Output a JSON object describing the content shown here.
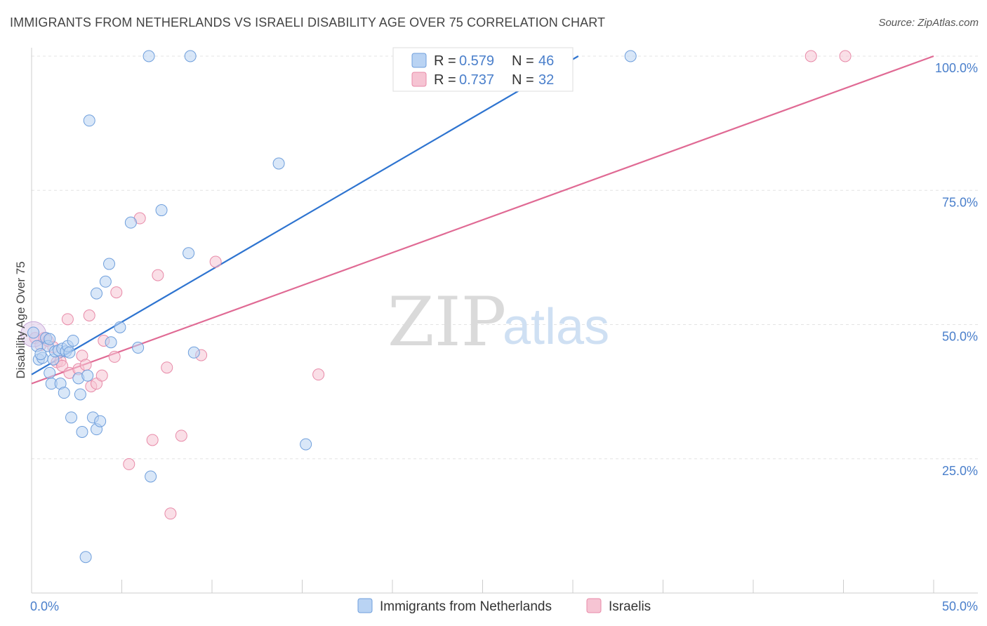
{
  "header": {
    "title": "IMMIGRANTS FROM NETHERLANDS VS ISRAELI DISABILITY AGE OVER 75 CORRELATION CHART",
    "source": "Source: ZipAtlas.com"
  },
  "watermark": {
    "zip": "ZIP",
    "atlas": "atlas"
  },
  "colors": {
    "blue_fill": "#b9d3f3",
    "blue_stroke": "#6f9fdc",
    "blue_line": "#2e74d0",
    "pink_fill": "#f6c4d3",
    "pink_stroke": "#e88aa8",
    "pink_line": "#e06a94",
    "axis_label": "#4a7fcb",
    "grid": "#e4e4e4"
  },
  "legend": {
    "rows": [
      {
        "r_label": "R =",
        "r_value": "0.579",
        "n_label": "N =",
        "n_value": "46",
        "series": "blue"
      },
      {
        "r_label": "R =",
        "r_value": "0.737",
        "n_label": "N =",
        "n_value": "32",
        "series": "pink"
      }
    ]
  },
  "chart_data": {
    "type": "scatter",
    "title": "IMMIGRANTS FROM NETHERLANDS VS ISRAELI DISABILITY AGE OVER 75 CORRELATION CHART",
    "xlabel": "",
    "ylabel": "Disability Age Over 75",
    "xlim": [
      0,
      50
    ],
    "ylim": [
      0,
      100
    ],
    "x_tick_labels": [
      {
        "value": 0,
        "label": "0.0%"
      },
      {
        "value": 50,
        "label": "50.0%"
      }
    ],
    "y_tick_labels": [
      {
        "value": 25,
        "label": "25.0%"
      },
      {
        "value": 50,
        "label": "50.0%"
      },
      {
        "value": 75,
        "label": "75.0%"
      },
      {
        "value": 100,
        "label": "100.0%"
      }
    ],
    "series": [
      {
        "name": "Immigrants from Netherlands",
        "color": "blue",
        "r": 0.579,
        "n": 46,
        "trend": {
          "x": [
            0,
            30.3
          ],
          "y": [
            40.7,
            100
          ]
        },
        "points": [
          [
            0.1,
            48.5
          ],
          [
            0.3,
            46.0
          ],
          [
            0.4,
            43.5
          ],
          [
            0.6,
            43.8
          ],
          [
            0.8,
            47.5
          ],
          [
            0.9,
            46.0
          ],
          [
            1.0,
            41.0
          ],
          [
            1.1,
            39.0
          ],
          [
            1.2,
            43.5
          ],
          [
            1.3,
            45.0
          ],
          [
            1.5,
            45.2
          ],
          [
            1.6,
            39.0
          ],
          [
            1.7,
            45.5
          ],
          [
            1.8,
            37.3
          ],
          [
            1.9,
            45.0
          ],
          [
            2.0,
            46.0
          ],
          [
            2.2,
            32.7
          ],
          [
            2.3,
            47.0
          ],
          [
            2.6,
            40.0
          ],
          [
            2.7,
            37.0
          ],
          [
            2.8,
            30.0
          ],
          [
            3.1,
            40.5
          ],
          [
            3.4,
            32.7
          ],
          [
            3.6,
            30.5
          ],
          [
            3.8,
            32.0
          ],
          [
            3.6,
            55.8
          ],
          [
            4.1,
            58.0
          ],
          [
            4.3,
            61.3
          ],
          [
            4.4,
            46.7
          ],
          [
            4.9,
            49.5
          ],
          [
            5.5,
            69.0
          ],
          [
            5.9,
            45.7
          ],
          [
            6.5,
            100.0
          ],
          [
            7.2,
            71.3
          ],
          [
            8.8,
            100.0
          ],
          [
            8.7,
            63.3
          ],
          [
            9.0,
            44.8
          ],
          [
            13.7,
            80.0
          ],
          [
            15.2,
            27.7
          ],
          [
            33.2,
            100.0
          ],
          [
            6.6,
            21.7
          ],
          [
            3.2,
            88.0
          ],
          [
            3.0,
            6.7
          ],
          [
            1.0,
            47.3
          ],
          [
            0.5,
            44.5
          ],
          [
            2.1,
            44.8
          ]
        ]
      },
      {
        "name": "Israelis",
        "color": "pink",
        "r": 0.737,
        "n": 32,
        "trend": {
          "x": [
            0,
            50
          ],
          "y": [
            39.0,
            100
          ]
        },
        "points": [
          [
            0.2,
            47.5
          ],
          [
            0.5,
            46.2
          ],
          [
            0.7,
            47.5
          ],
          [
            1.4,
            43.0
          ],
          [
            1.6,
            43.2
          ],
          [
            1.7,
            42.3
          ],
          [
            2.0,
            51.0
          ],
          [
            2.1,
            41.0
          ],
          [
            2.6,
            41.7
          ],
          [
            2.8,
            44.2
          ],
          [
            3.0,
            42.5
          ],
          [
            3.2,
            51.7
          ],
          [
            3.3,
            38.5
          ],
          [
            3.6,
            39.0
          ],
          [
            3.9,
            40.5
          ],
          [
            4.0,
            47.0
          ],
          [
            4.6,
            44.0
          ],
          [
            4.7,
            56.0
          ],
          [
            5.4,
            24.0
          ],
          [
            6.0,
            69.8
          ],
          [
            6.7,
            28.5
          ],
          [
            7.0,
            59.2
          ],
          [
            7.5,
            42.0
          ],
          [
            7.7,
            14.8
          ],
          [
            8.3,
            29.3
          ],
          [
            9.4,
            44.3
          ],
          [
            10.2,
            61.7
          ],
          [
            15.9,
            40.7
          ],
          [
            43.2,
            100.0
          ],
          [
            45.1,
            100.0
          ],
          [
            0.9,
            47.0
          ],
          [
            1.2,
            45.8
          ]
        ]
      }
    ]
  },
  "bottom_legend": [
    {
      "label": "Immigrants from Netherlands",
      "series": "blue"
    },
    {
      "label": "Israelis",
      "series": "pink"
    }
  ]
}
